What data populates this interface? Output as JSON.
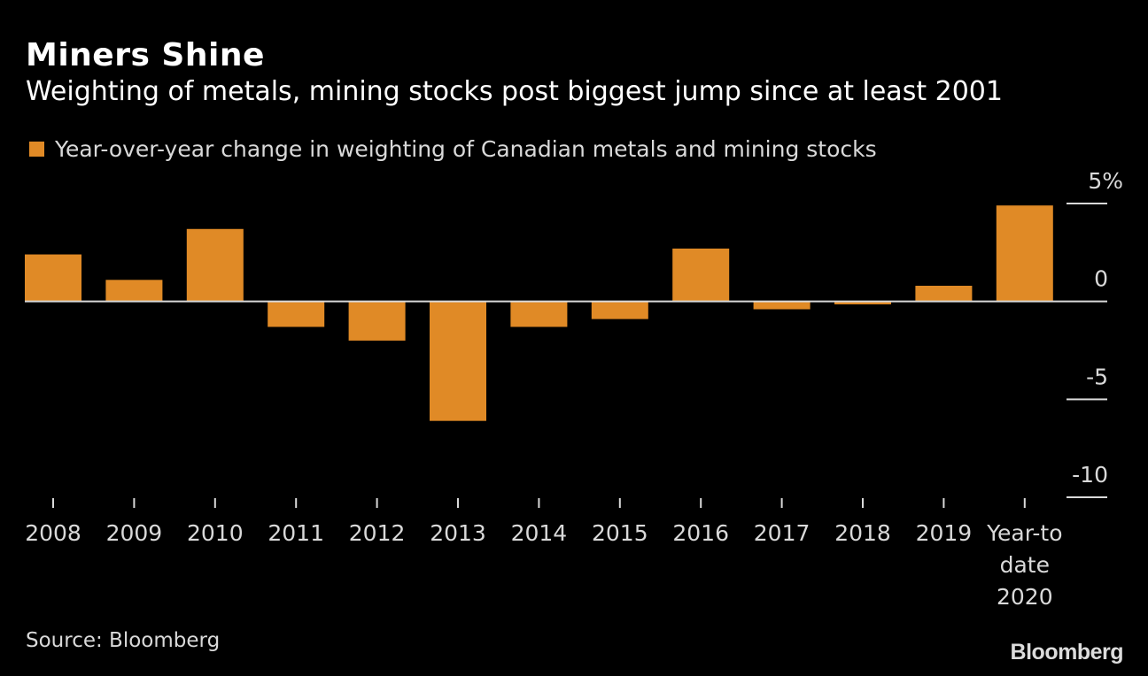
{
  "header": {
    "title": "Miners Shine",
    "subtitle": "Weighting of metals, mining stocks post biggest jump since at least 2001"
  },
  "footer": {
    "source": "Source: Bloomberg",
    "logo": "Bloomberg"
  },
  "chart_data": {
    "type": "bar",
    "title": "Miners Shine",
    "subtitle": "Weighting of metals, mining stocks post biggest jump since at least 2001",
    "xlabel": "",
    "ylabel": "",
    "categories": [
      "2008",
      "2009",
      "2010",
      "2011",
      "2012",
      "2013",
      "2014",
      "2015",
      "2016",
      "2017",
      "2018",
      "2019",
      "Year-to date 2020"
    ],
    "category_lines": [
      [
        "2008"
      ],
      [
        "2009"
      ],
      [
        "2010"
      ],
      [
        "2011"
      ],
      [
        "2012"
      ],
      [
        "2013"
      ],
      [
        "2014"
      ],
      [
        "2015"
      ],
      [
        "2016"
      ],
      [
        "2017"
      ],
      [
        "2018"
      ],
      [
        "2019"
      ],
      [
        "Year-to",
        "date",
        "2020"
      ]
    ],
    "series": [
      {
        "name": "Year-over-year change in weighting of Canadian metals and mining stocks",
        "color": "#e08a26",
        "values": [
          2.4,
          1.1,
          3.7,
          -1.3,
          -2.0,
          -6.1,
          -1.3,
          -0.9,
          2.7,
          -0.4,
          -0.15,
          0.8,
          4.9
        ]
      }
    ],
    "ylim": [
      -10,
      5
    ],
    "yticks": [
      5,
      0,
      -5,
      -10
    ],
    "ytick_labels": [
      "5%",
      "0",
      "-5",
      "-10"
    ],
    "legend": "top-left",
    "y_axis_side": "right",
    "grid": false
  }
}
